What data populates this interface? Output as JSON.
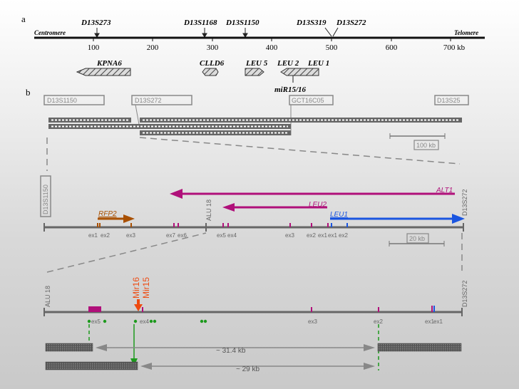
{
  "panel_a": {
    "label": "a",
    "centromere": "Centromere",
    "telomere": "Telomere",
    "markers": [
      "D13S273",
      "D13S1168",
      "D13S1150",
      "D13S319",
      "D13S272"
    ],
    "ticks": [
      "100",
      "200",
      "300",
      "400",
      "500",
      "600",
      "700 kb"
    ],
    "genes": [
      "KPNA6",
      "CLLD6",
      "LEU 5",
      "LEU 2",
      "LEU 1"
    ],
    "mirna": "miR15/16"
  },
  "panel_b": {
    "label": "b",
    "contig_markers": [
      "D13S1150",
      "D13S272",
      "GCT16C05",
      "D13S25"
    ],
    "scale_100": "100 kb",
    "region_left": "D13S1150",
    "region_right": "D13S272",
    "alu_mid": "ALU 18",
    "transcripts": [
      "ALT1",
      "LEU2",
      "LEU1",
      "RFP2"
    ],
    "exons_mid": [
      "ex1",
      "ex2",
      "ex3",
      "ex7",
      "ex6",
      "ex5",
      "ex4",
      "ex3",
      "ex2",
      "ex1",
      "ex1",
      "ex2"
    ],
    "scale_20": "20 kb",
    "detail_left": "ALU 18",
    "detail_right": "D13S272",
    "mir16": "Mir16",
    "mir15": "Mir15",
    "exons_detail": [
      "ex5",
      "ex4",
      "ex3",
      "ex2",
      "ex1",
      "ex1"
    ],
    "dist_1": "~ 31.4 kb",
    "dist_2": "~ 29 kb"
  },
  "colors": {
    "alt1": "#b0107a",
    "leu2": "#b0107a",
    "leu1": "#1a55e0",
    "rfp2": "#a84f00",
    "mir": "#ee4a10",
    "green": "#1d9a1d",
    "line": "#666666",
    "box": "#888888"
  }
}
